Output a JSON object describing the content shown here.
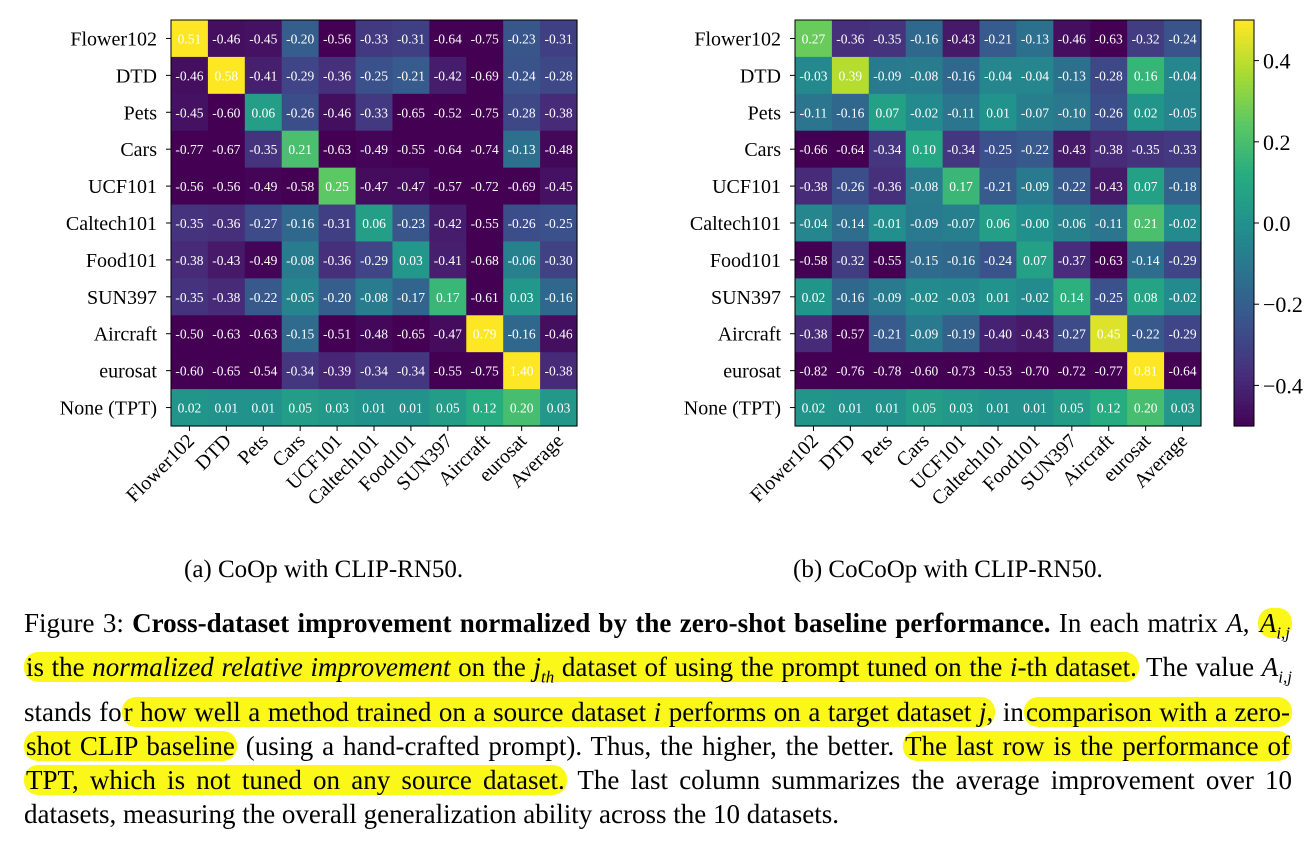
{
  "colors": {
    "background": "#ffffff",
    "highlight": "#fbf719",
    "cell_text": "#ffffff"
  },
  "chart_data": [
    {
      "type": "heatmap",
      "panel_id": "a",
      "title": "",
      "rows": [
        "Flower102",
        "DTD",
        "Pets",
        "Cars",
        "UCF101",
        "Caltech101",
        "Food101",
        "SUN397",
        "Aircraft",
        "eurosat",
        "None (TPT)"
      ],
      "columns": [
        "Flower102",
        "DTD",
        "Pets",
        "Cars",
        "UCF101",
        "Caltech101",
        "Food101",
        "SUN397",
        "Aircraft",
        "eurosat",
        "Average"
      ],
      "values": [
        [
          0.51,
          -0.46,
          -0.45,
          -0.2,
          -0.56,
          -0.33,
          -0.31,
          -0.64,
          -0.75,
          -0.23,
          -0.31
        ],
        [
          -0.46,
          0.58,
          -0.41,
          -0.29,
          -0.36,
          -0.25,
          -0.21,
          -0.42,
          -0.69,
          -0.24,
          -0.28
        ],
        [
          -0.45,
          -0.6,
          0.06,
          -0.26,
          -0.46,
          -0.33,
          -0.65,
          -0.52,
          -0.75,
          -0.28,
          -0.38
        ],
        [
          -0.77,
          -0.67,
          -0.35,
          0.21,
          -0.63,
          -0.49,
          -0.55,
          -0.64,
          -0.74,
          -0.13,
          -0.48
        ],
        [
          -0.56,
          -0.56,
          -0.49,
          -0.58,
          0.25,
          -0.47,
          -0.47,
          -0.57,
          -0.72,
          -0.69,
          -0.45
        ],
        [
          -0.35,
          -0.36,
          -0.27,
          -0.16,
          -0.31,
          0.06,
          -0.23,
          -0.42,
          -0.55,
          -0.26,
          -0.25
        ],
        [
          -0.38,
          -0.43,
          -0.49,
          -0.08,
          -0.36,
          -0.29,
          0.03,
          -0.41,
          -0.68,
          -0.06,
          -0.3
        ],
        [
          -0.35,
          -0.38,
          -0.22,
          -0.05,
          -0.2,
          -0.08,
          -0.17,
          0.17,
          -0.61,
          0.03,
          -0.16
        ],
        [
          -0.5,
          -0.63,
          -0.63,
          -0.15,
          -0.51,
          -0.48,
          -0.65,
          -0.47,
          0.79,
          -0.16,
          -0.46
        ],
        [
          -0.6,
          -0.65,
          -0.54,
          -0.34,
          -0.39,
          -0.34,
          -0.34,
          -0.55,
          -0.75,
          1.4,
          -0.38
        ],
        [
          0.02,
          0.01,
          0.01,
          0.05,
          0.03,
          0.01,
          0.01,
          0.05,
          0.12,
          0.2,
          0.03
        ]
      ],
      "color_range": [
        -0.5,
        0.5
      ],
      "colormap": "viridis"
    },
    {
      "type": "heatmap",
      "panel_id": "b",
      "title": "",
      "rows": [
        "Flower102",
        "DTD",
        "Pets",
        "Cars",
        "UCF101",
        "Caltech101",
        "Food101",
        "SUN397",
        "Aircraft",
        "eurosat",
        "None (TPT)"
      ],
      "columns": [
        "Flower102",
        "DTD",
        "Pets",
        "Cars",
        "UCF101",
        "Caltech101",
        "Food101",
        "SUN397",
        "Aircraft",
        "eurosat",
        "Average"
      ],
      "values": [
        [
          0.27,
          -0.36,
          -0.35,
          -0.16,
          -0.43,
          -0.21,
          -0.13,
          -0.46,
          -0.63,
          -0.32,
          -0.24
        ],
        [
          -0.03,
          0.39,
          -0.09,
          -0.08,
          -0.16,
          -0.04,
          -0.04,
          -0.13,
          -0.28,
          0.16,
          -0.04
        ],
        [
          -0.11,
          -0.16,
          0.07,
          -0.02,
          -0.11,
          0.01,
          -0.07,
          -0.1,
          -0.26,
          0.02,
          -0.05
        ],
        [
          -0.66,
          -0.64,
          -0.34,
          0.1,
          -0.34,
          -0.25,
          -0.22,
          -0.43,
          -0.38,
          -0.35,
          -0.33
        ],
        [
          -0.38,
          -0.26,
          -0.36,
          -0.08,
          0.17,
          -0.21,
          -0.09,
          -0.22,
          -0.43,
          0.07,
          -0.18
        ],
        [
          -0.04,
          -0.14,
          -0.01,
          -0.09,
          -0.07,
          0.06,
          -0.0,
          -0.06,
          -0.11,
          0.21,
          -0.02
        ],
        [
          -0.58,
          -0.32,
          -0.55,
          -0.15,
          -0.16,
          -0.24,
          0.07,
          -0.37,
          -0.63,
          -0.14,
          -0.29
        ],
        [
          0.02,
          -0.16,
          -0.09,
          -0.02,
          -0.03,
          0.01,
          -0.02,
          0.14,
          -0.25,
          0.08,
          -0.02
        ],
        [
          -0.38,
          -0.57,
          -0.21,
          -0.09,
          -0.19,
          -0.4,
          -0.43,
          -0.27,
          0.45,
          -0.22,
          -0.29
        ],
        [
          -0.82,
          -0.76,
          -0.78,
          -0.6,
          -0.73,
          -0.53,
          -0.7,
          -0.72,
          -0.77,
          0.81,
          -0.64
        ],
        [
          0.02,
          0.01,
          0.01,
          0.05,
          0.03,
          0.01,
          0.01,
          0.05,
          0.12,
          0.2,
          0.03
        ]
      ],
      "color_range": [
        -0.5,
        0.5
      ],
      "colormap": "viridis",
      "colorbar_ticks": [
        0.4,
        0.2,
        0.0,
        -0.2,
        -0.4
      ],
      "colorbar_tick_labels": [
        "0.4",
        "0.2",
        "0.0",
        "−0.2",
        "−0.4"
      ]
    }
  ],
  "subcaptions": {
    "a": "(a) CoOp with CLIP-RN50.",
    "b": "(b) CoCoOp with CLIP-RN50."
  },
  "caption": {
    "figure_label": "Figure 3:",
    "bold_title": "Cross-dataset improvement normalized by the zero-shot baseline performance.",
    "t1": "In each matrix ",
    "var_A": "A",
    "t2": ", ",
    "hl1_italic": "normalized relative improvement",
    "hl1_pre": " is the ",
    "hl1_post": " on the ",
    "hl1_post2": " dataset of using the prompt tuned on the ",
    "var_i": "i",
    "hl1_tail": "-th dataset.",
    "t3": " The value ",
    "t4": " stands fo",
    "hl2_a": "r how well a method trained on a source dataset ",
    "hl2_b": "performs on a target dataset ",
    "var_j": "j",
    "hl2_c": ",",
    "t5": " in",
    "hl3": "comparison with a zero-shot CLIP baseline",
    "t6": " (using a hand-crafted prompt). Thus, the higher, the better. ",
    "hl4": "The last row is the performance of TPT, which is not tuned on any source dataset.",
    "t7": " The last column summarizes the average improvement over 10 datasets, measuring the overall generalization ability across the 10 datasets."
  }
}
